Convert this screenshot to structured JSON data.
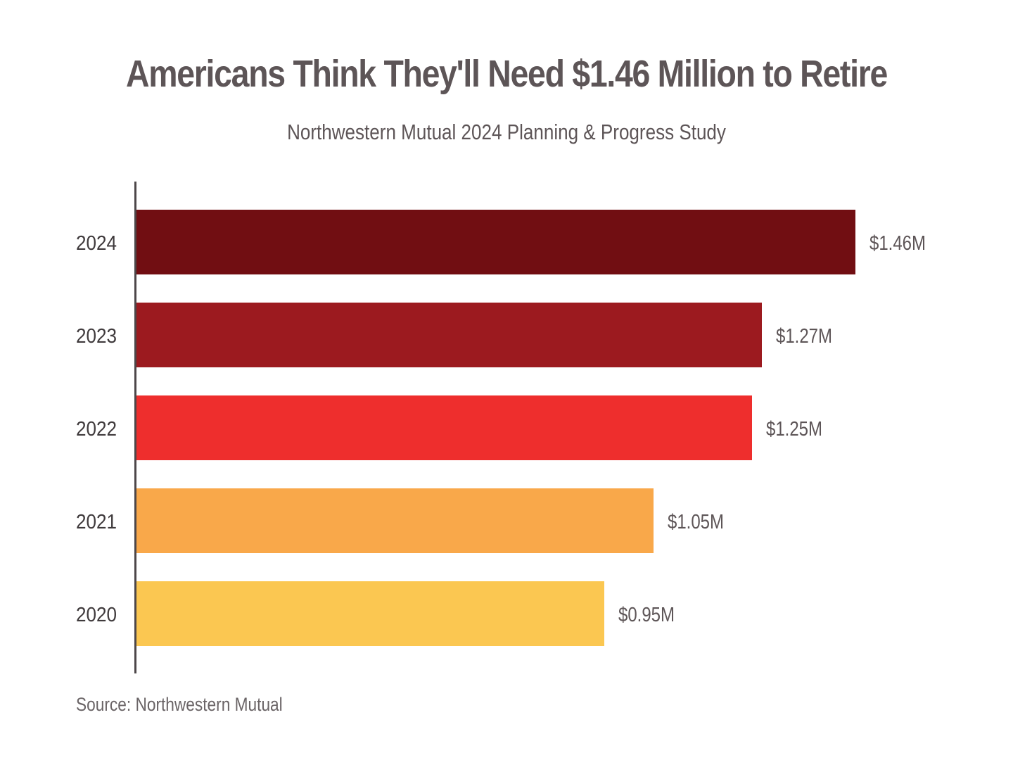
{
  "chart_data": {
    "type": "bar",
    "orientation": "horizontal",
    "title": "Americans Think They'll Need $1.46 Million to Retire",
    "subtitle": "Northwestern Mutual 2024 Planning & Progress Study",
    "source": "Source: Northwestern Mutual",
    "categories": [
      "2024",
      "2023",
      "2022",
      "2021",
      "2020"
    ],
    "values": [
      1.46,
      1.27,
      1.25,
      1.05,
      0.95
    ],
    "value_labels": [
      "$1.46M",
      "$1.27M",
      "$1.25M",
      "$1.05M",
      "$0.95M"
    ],
    "colors": [
      "#710e12",
      "#9c1a1f",
      "#ee2e2d",
      "#f9a84a",
      "#fbc751"
    ],
    "xlabel": "",
    "ylabel": "",
    "xlim": [
      0,
      1.46
    ],
    "unit": "Million USD",
    "grid": false,
    "legend": "none"
  }
}
